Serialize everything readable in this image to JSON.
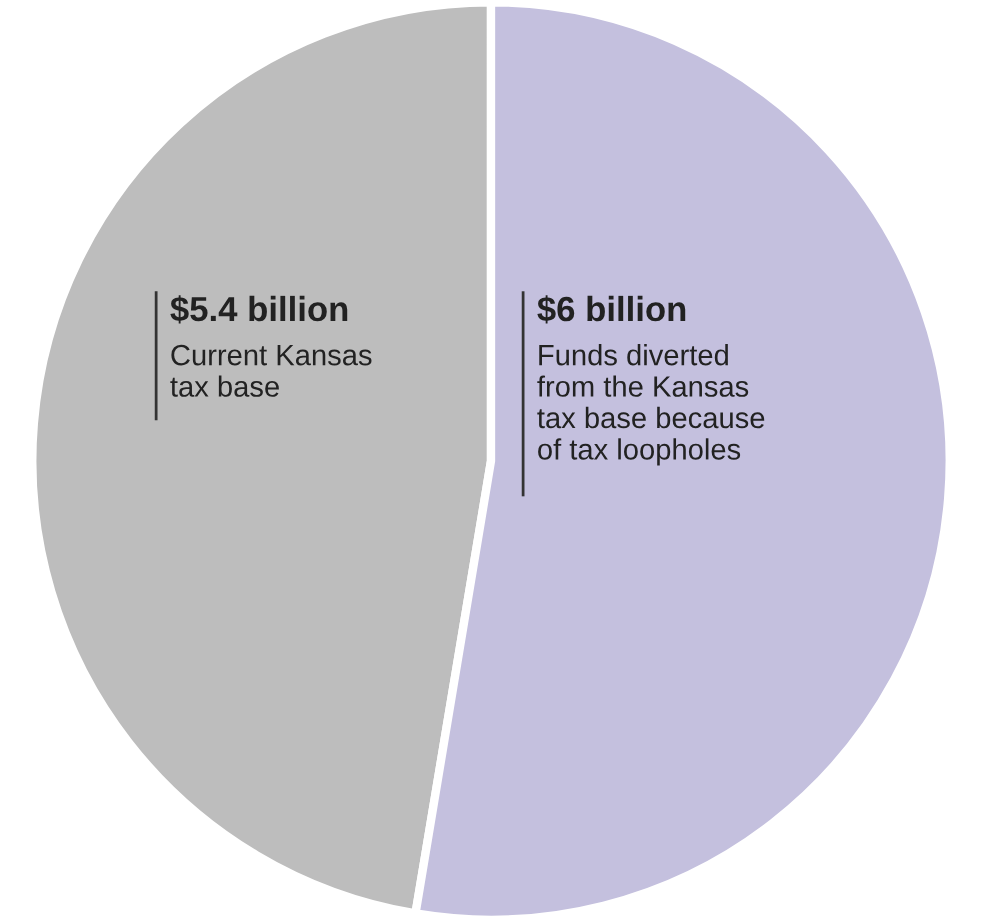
{
  "chart_data": {
    "type": "pie",
    "categories": [
      "Current Kansas\ntax base",
      "Funds diverted\nfrom the Kansas\ntax base because\nof tax loopholes"
    ],
    "values": [
      5.4,
      6
    ],
    "value_labels": [
      "$5.4 billion",
      "$6 billion"
    ],
    "colors": [
      "#bdbdbd",
      "#c4c0de"
    ],
    "legend": false
  }
}
